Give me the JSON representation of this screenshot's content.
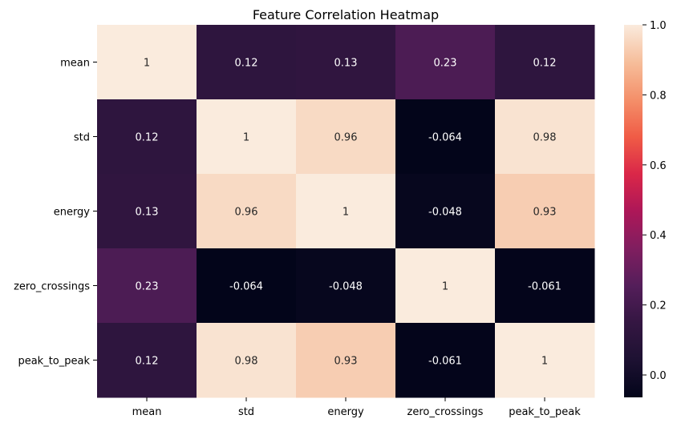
{
  "chart_data": {
    "type": "heatmap",
    "title": "Feature Correlation Heatmap",
    "xlabel": "",
    "ylabel": "",
    "rows": [
      "mean",
      "std",
      "energy",
      "zero_crossings",
      "peak_to_peak"
    ],
    "columns": [
      "mean",
      "std",
      "energy",
      "zero_crossings",
      "peak_to_peak"
    ],
    "values": [
      [
        1,
        0.12,
        0.13,
        0.23,
        0.12
      ],
      [
        0.12,
        1,
        0.96,
        -0.064,
        0.98
      ],
      [
        0.13,
        0.96,
        1,
        -0.048,
        0.93
      ],
      [
        0.23,
        -0.064,
        -0.048,
        1,
        -0.061
      ],
      [
        0.12,
        0.98,
        0.93,
        -0.061,
        1
      ]
    ],
    "annotations": [
      [
        "1",
        "0.12",
        "0.13",
        "0.23",
        "0.12"
      ],
      [
        "0.12",
        "1",
        "0.96",
        "-0.064",
        "0.98"
      ],
      [
        "0.13",
        "0.96",
        "1",
        "-0.048",
        "0.93"
      ],
      [
        "0.23",
        "-0.064",
        "-0.048",
        "1",
        "-0.061"
      ],
      [
        "0.12",
        "0.98",
        "0.93",
        "-0.061",
        "1"
      ]
    ],
    "colorbar": {
      "range": [
        -0.064,
        1
      ],
      "ticks": [
        "0.0",
        "0.2",
        "0.4",
        "0.6",
        "0.8",
        "1.0"
      ],
      "tick_values": [
        0,
        0.2,
        0.4,
        0.6,
        0.8,
        1.0
      ],
      "colormap": "rocket"
    }
  }
}
